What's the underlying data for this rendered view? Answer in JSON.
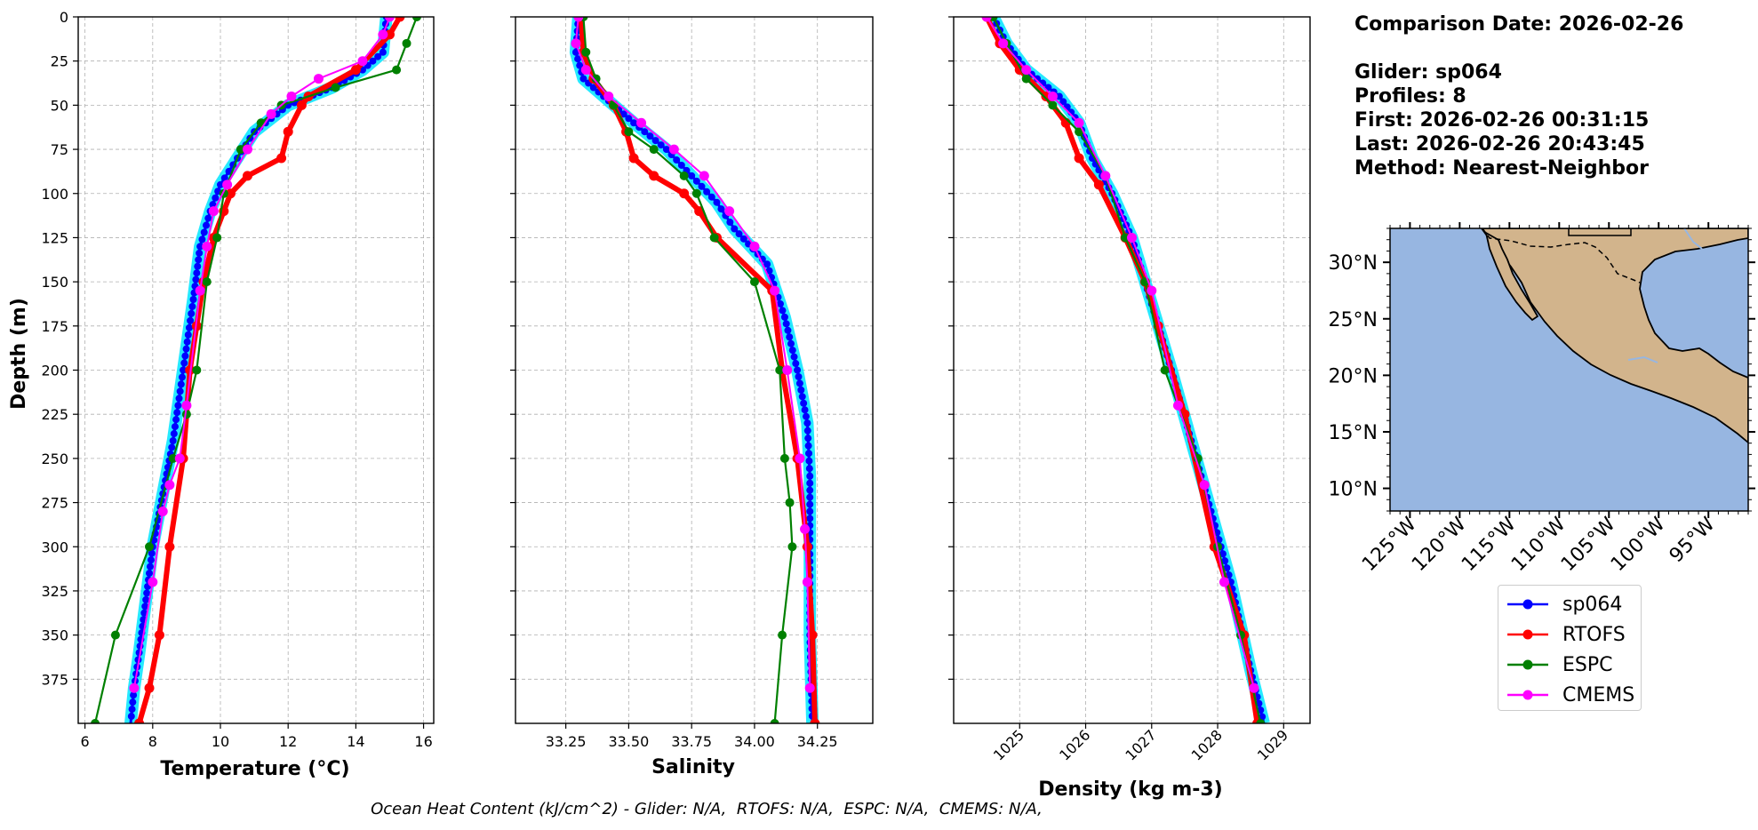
{
  "info": {
    "comparison_date": "Comparison Date: 2026-02-26",
    "glider": "Glider: sp064",
    "profiles": "Profiles: 8",
    "first": "First: 2026-02-26 00:31:15",
    "last": "Last: 2026-02-26 20:43:45",
    "method": "Method: Nearest-Neighbor"
  },
  "footer": "Ocean Heat Content (kJ/cm^2) - Glider: N/A,  RTOFS: N/A,  ESPC: N/A,  CMEMS: N/A,",
  "colors": {
    "sp064": "#0000ff",
    "sp064_shade": "#00e5ff",
    "RTOFS": "#ff0000",
    "ESPC": "#008000",
    "CMEMS": "#ff00ff",
    "ocean": "#97b6e1",
    "land": "#d2b48c",
    "grid": "#b0b0b0"
  },
  "chart_data": [
    {
      "type": "line",
      "xlabel": "Temperature (°C)",
      "ylabel": "Depth (m)",
      "xlim": [
        5.8,
        16.3
      ],
      "ylim": [
        400,
        0
      ],
      "xticks": [
        6,
        8,
        10,
        12,
        14,
        16
      ],
      "yticks": [
        0,
        25,
        50,
        75,
        100,
        125,
        150,
        175,
        200,
        225,
        250,
        275,
        300,
        325,
        350,
        375
      ],
      "grid": true,
      "series": [
        {
          "name": "sp064",
          "x": [
            14.9,
            14.8,
            14.2,
            13.3,
            12.0,
            11.0,
            10.5,
            10.0,
            9.7,
            9.4,
            9.2,
            8.9,
            8.6,
            8.3,
            8.0,
            7.8,
            7.6,
            7.45,
            7.35
          ],
          "y": [
            0,
            20,
            30,
            40,
            50,
            65,
            80,
            95,
            110,
            130,
            160,
            200,
            240,
            270,
            300,
            330,
            360,
            380,
            400
          ]
        },
        {
          "name": "RTOFS",
          "x": [
            15.3,
            15.0,
            14.0,
            12.6,
            12.4,
            12.0,
            11.8,
            10.8,
            10.3,
            10.1,
            9.8,
            9.5,
            9.3,
            9.1,
            8.9,
            8.5,
            8.2,
            7.9,
            7.6
          ],
          "y": [
            0,
            10,
            30,
            45,
            50,
            65,
            80,
            90,
            100,
            110,
            125,
            150,
            175,
            200,
            250,
            300,
            350,
            380,
            400
          ]
        },
        {
          "name": "ESPC",
          "x": [
            15.8,
            15.5,
            15.2,
            13.4,
            11.8,
            11.2,
            10.6,
            10.1,
            9.9,
            9.6,
            9.3,
            9.0,
            8.6,
            7.9,
            6.9,
            6.3
          ],
          "y": [
            0,
            15,
            30,
            40,
            50,
            60,
            75,
            100,
            125,
            150,
            200,
            225,
            250,
            300,
            350,
            400
          ]
        },
        {
          "name": "CMEMS",
          "x": [
            15.0,
            14.8,
            14.2,
            12.9,
            12.1,
            11.5,
            10.8,
            10.2,
            9.8,
            9.6,
            9.4,
            9.0,
            8.8,
            8.5,
            8.3,
            8.0,
            7.45
          ],
          "y": [
            0,
            10,
            25,
            35,
            45,
            55,
            75,
            95,
            110,
            130,
            155,
            220,
            250,
            265,
            280,
            320,
            380
          ]
        }
      ]
    },
    {
      "type": "line",
      "xlabel": "Salinity",
      "xlim": [
        33.05,
        34.47
      ],
      "ylim": [
        400,
        0
      ],
      "xticks": [
        33.25,
        33.5,
        33.75,
        34.0,
        34.25
      ],
      "xticklabels": [
        "33.25",
        "33.50",
        "33.75",
        "34.00",
        "34.25"
      ],
      "grid": true,
      "series": [
        {
          "name": "sp064",
          "x": [
            33.3,
            33.29,
            33.32,
            33.4,
            33.52,
            33.65,
            33.75,
            33.85,
            33.92,
            34.05,
            34.12,
            34.17,
            34.21,
            34.22,
            34.22,
            34.22,
            34.23
          ],
          "y": [
            0,
            20,
            35,
            45,
            60,
            75,
            90,
            105,
            120,
            140,
            170,
            200,
            230,
            260,
            300,
            350,
            400
          ]
        },
        {
          "name": "RTOFS",
          "x": [
            33.31,
            33.32,
            33.36,
            33.44,
            33.49,
            33.52,
            33.6,
            33.72,
            33.78,
            33.85,
            34.07,
            34.11,
            34.17,
            34.21,
            34.23,
            34.24
          ],
          "y": [
            0,
            20,
            35,
            50,
            65,
            80,
            90,
            100,
            110,
            125,
            155,
            200,
            250,
            300,
            350,
            400
          ]
        },
        {
          "name": "ESPC",
          "x": [
            33.32,
            33.33,
            33.37,
            33.44,
            33.5,
            33.6,
            33.72,
            33.77,
            33.84,
            34.0,
            34.1,
            34.12,
            34.14,
            34.15,
            34.11,
            34.08
          ],
          "y": [
            0,
            20,
            35,
            50,
            65,
            75,
            90,
            100,
            125,
            150,
            200,
            250,
            275,
            300,
            350,
            400
          ]
        },
        {
          "name": "CMEMS",
          "x": [
            33.3,
            33.29,
            33.33,
            33.42,
            33.55,
            33.68,
            33.8,
            33.9,
            34.0,
            34.08,
            34.13,
            34.18,
            34.2,
            34.21,
            34.22
          ],
          "y": [
            0,
            15,
            30,
            45,
            60,
            75,
            90,
            110,
            130,
            155,
            200,
            250,
            290,
            320,
            380
          ]
        }
      ]
    },
    {
      "type": "line",
      "xlabel": "Density (kg m-3)",
      "xlim": [
        1024.0,
        1029.4
      ],
      "ylim": [
        400,
        0
      ],
      "xticks": [
        1025,
        1026,
        1027,
        1028,
        1029
      ],
      "grid": true,
      "series": [
        {
          "name": "sp064",
          "x": [
            1024.6,
            1024.8,
            1025.1,
            1025.6,
            1025.9,
            1026.1,
            1026.4,
            1026.7,
            1026.9,
            1027.1,
            1027.3,
            1027.6,
            1027.9,
            1028.2,
            1028.5,
            1028.7
          ],
          "y": [
            0,
            15,
            30,
            45,
            60,
            80,
            100,
            125,
            150,
            175,
            200,
            240,
            280,
            320,
            370,
            400
          ]
        },
        {
          "name": "RTOFS",
          "x": [
            1024.5,
            1024.7,
            1025.0,
            1025.4,
            1025.7,
            1025.9,
            1026.2,
            1026.6,
            1026.9,
            1027.1,
            1027.5,
            1027.95,
            1028.4,
            1028.6
          ],
          "y": [
            0,
            15,
            30,
            45,
            60,
            80,
            95,
            125,
            150,
            175,
            225,
            300,
            350,
            400
          ]
        },
        {
          "name": "ESPC",
          "x": [
            1024.6,
            1024.8,
            1025.1,
            1025.5,
            1025.9,
            1026.3,
            1026.6,
            1026.9,
            1027.2,
            1027.7,
            1028.0,
            1028.35,
            1028.65
          ],
          "y": [
            0,
            15,
            35,
            50,
            65,
            90,
            125,
            150,
            200,
            250,
            300,
            350,
            400
          ]
        },
        {
          "name": "CMEMS",
          "x": [
            1024.5,
            1024.75,
            1025.1,
            1025.5,
            1025.9,
            1026.3,
            1026.7,
            1027.0,
            1027.4,
            1027.8,
            1028.1,
            1028.55
          ],
          "y": [
            0,
            15,
            30,
            45,
            60,
            90,
            125,
            155,
            220,
            265,
            320,
            380
          ]
        }
      ]
    }
  ],
  "map": {
    "lon_range": [
      -127,
      -91
    ],
    "lat_range": [
      8,
      33
    ],
    "lon_ticks": [
      -125,
      -120,
      -115,
      -110,
      -105,
      -100,
      -95
    ],
    "lon_labels": [
      "125°W",
      "120°W",
      "115°W",
      "110°W",
      "105°W",
      "100°W",
      "95°W"
    ],
    "lat_ticks": [
      30,
      25,
      20,
      15,
      10
    ],
    "lat_labels": [
      "30°N",
      "25°N",
      "20°N",
      "15°N",
      "10°N"
    ]
  },
  "legend": {
    "entries": [
      "sp064",
      "RTOFS",
      "ESPC",
      "CMEMS"
    ]
  }
}
